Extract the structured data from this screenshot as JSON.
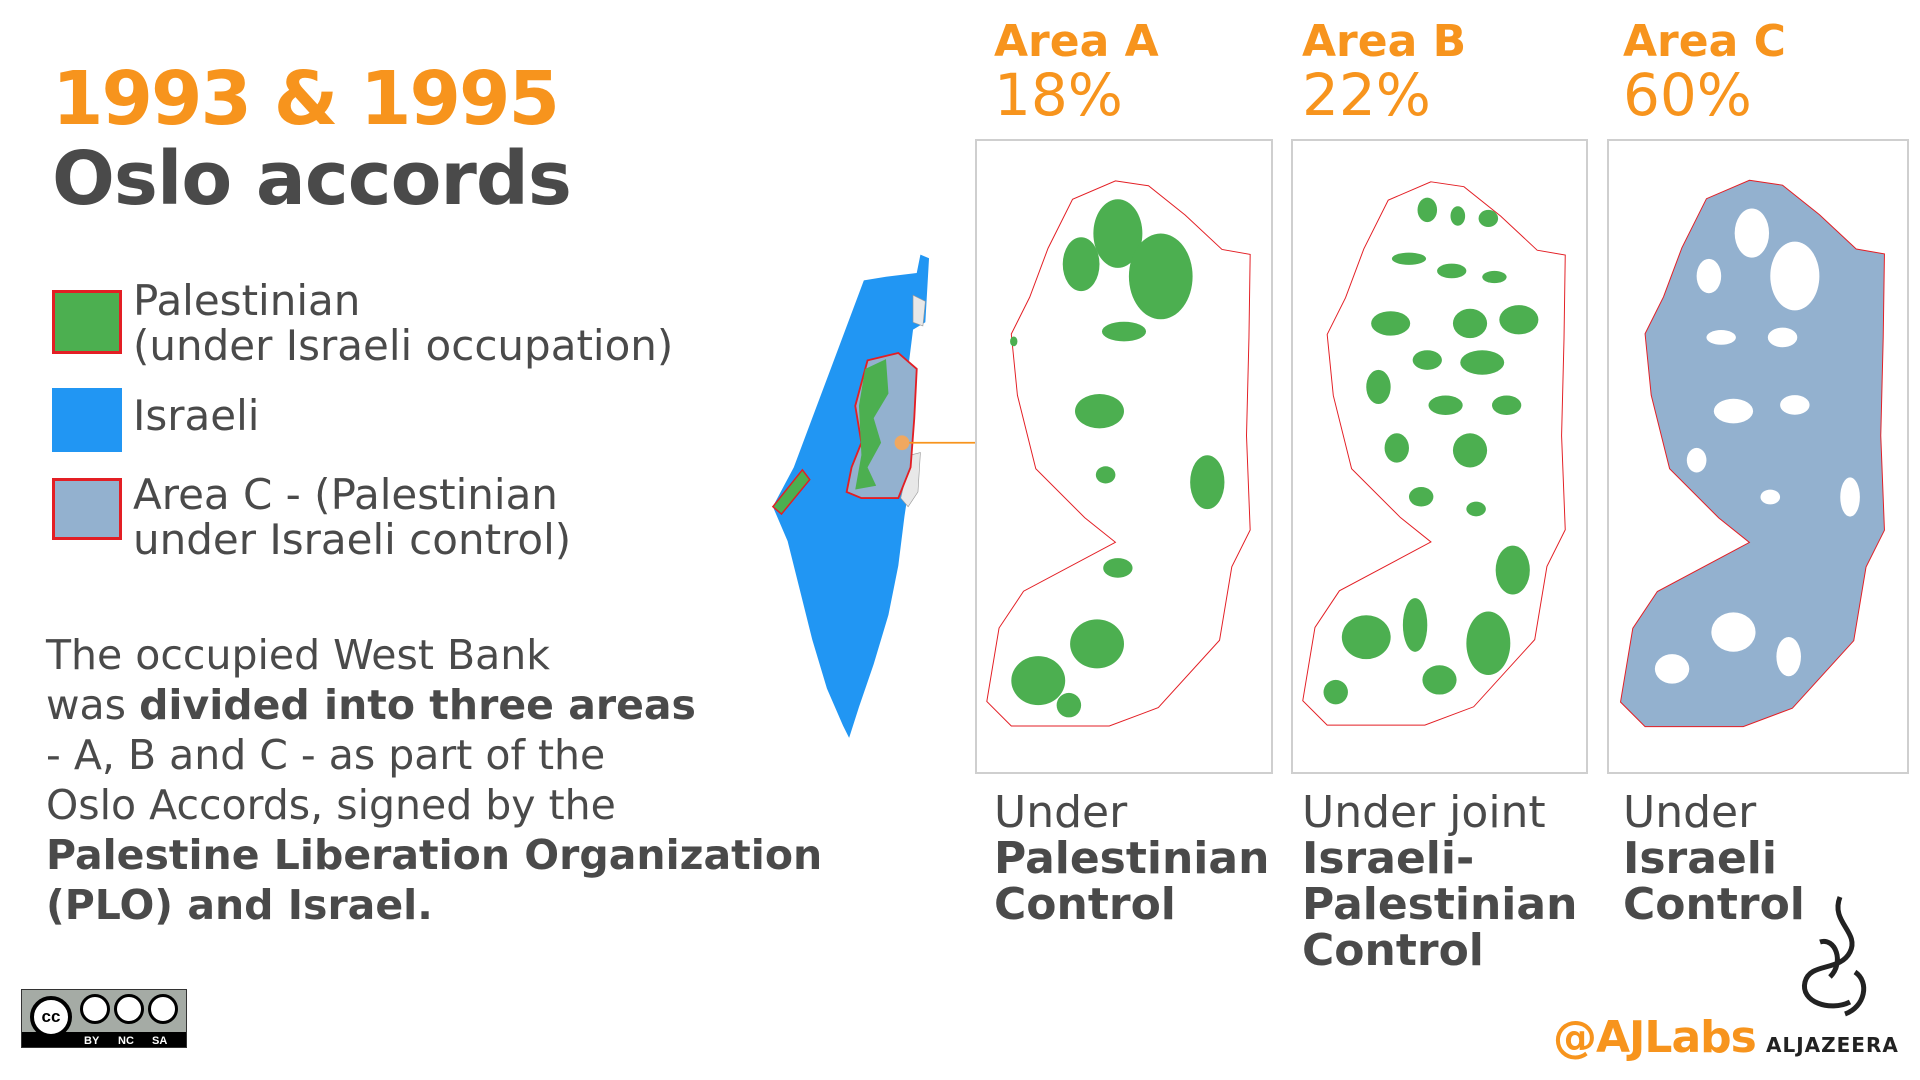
{
  "title": {
    "years": "1993 & 1995",
    "name": "Oslo accords"
  },
  "legend": [
    {
      "line1": "Palestinian",
      "line2": "(under Israeli occupation)",
      "color": "#4caf50"
    },
    {
      "line1": "Israeli",
      "line2": "",
      "color": "#2196f3"
    },
    {
      "line1": "Area C - (Palestinian",
      "line2": "under Israeli control)",
      "color": "#93b1cf"
    }
  ],
  "paragraph": {
    "p1": "The occupied West Bank",
    "p2": "was ",
    "p3": "divided into three areas",
    "p4": "- A, B and C - as part of the",
    "p5": "Oslo Accords, signed by the",
    "p6": "Palestine Liberation Organization",
    "p7": "(PLO) and Israel."
  },
  "areas": [
    {
      "name": "Area A",
      "percent": "18%",
      "under1": "Under",
      "under2": "Palestinian",
      "under3": "Control",
      "under4": ""
    },
    {
      "name": "Area B",
      "percent": "22%",
      "under1": "Under joint",
      "under2": "Israeli-",
      "under3": "Palestinian",
      "under4": "Control"
    },
    {
      "name": "Area C",
      "percent": "60%",
      "under1": "Under",
      "under2": "Israeli",
      "under3": "Control",
      "under4": ""
    }
  ],
  "colors": {
    "accent": "#f7941d",
    "palestinian": "#4caf50",
    "israeli": "#2196f3",
    "areaC": "#93b1cf",
    "border": "#e31e24"
  },
  "license": {
    "by": "BY",
    "nc": "NC",
    "sa": "SA",
    "cc": "cc"
  },
  "credits": {
    "handle": "@AJLabs",
    "brand": "ALJAZEERA"
  }
}
